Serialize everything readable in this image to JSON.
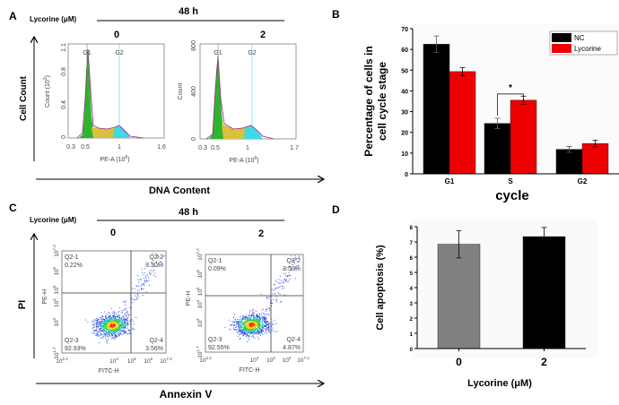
{
  "panel_a": {
    "letter": "A",
    "treatment_label": "Lycorine (μM)",
    "time": "48 h",
    "dose_0": "0",
    "dose_2": "2",
    "y_axis": "Cell  Count",
    "x_axis": "DNA Content",
    "plot_0": {
      "ylabel": "Count (10",
      "ylabel_exp": "3",
      "xlabel": "PE-A (10",
      "xlabel_exp": "6",
      "yticks": [
        "0",
        "0.4",
        "0.8",
        "1.1"
      ],
      "xticks": [
        "0.3",
        "0.5",
        "1",
        "1.6"
      ],
      "g1": "G1",
      "g2": "G2"
    },
    "plot_2": {
      "ylabel": "Count",
      "xlabel": "PE-A (10",
      "xlabel_exp": "6",
      "yticks": [
        "0",
        "400",
        "800"
      ],
      "xticks": [
        "0.3",
        "0.5",
        "1",
        "1.7"
      ],
      "g1": "G1",
      "g2": "G2"
    },
    "colors": {
      "g1": "#2db52d",
      "s": "#d8c23a",
      "g2": "#3fd8e8",
      "outline": "#a0208f"
    }
  },
  "panel_c": {
    "letter": "C",
    "treatment_label": "Lycorine (μM)",
    "time": "48 h",
    "dose_0": "0",
    "dose_2": "2",
    "y_axis": "PI",
    "x_axis": "Annexin V",
    "ylabel": "PE-H",
    "xlabel": "FITC-H",
    "yticks_exp": [
      "1.7",
      "3",
      "4",
      "5",
      "6",
      "7.2"
    ],
    "xticks_exp": [
      "2.2",
      "4",
      "5",
      "6",
      "7.2"
    ],
    "tick_base": "10",
    "plot_0": {
      "q1": "Q2-1",
      "q1v": "0.22%",
      "q2": "Q2-2",
      "q2v": "3.30%",
      "q3": "Q2-3",
      "q3v": "92.93%",
      "q4": "Q2-4",
      "q4v": "3.56%"
    },
    "plot_2": {
      "q1": "Q2-1",
      "q1v": "0.09%",
      "q2": "Q2-2",
      "q2v": "2.50%",
      "q3": "Q2-3",
      "q3v": "92.55%",
      "q4": "Q2-4",
      "q4v": "4.87%"
    }
  },
  "chart_data": [
    {
      "panel": "B",
      "type": "bar",
      "categories": [
        "G1",
        "S",
        "G2"
      ],
      "series": [
        {
          "name": "NC",
          "color": "#000000",
          "values": [
            62.5,
            24.3,
            11.8
          ],
          "errors": [
            4.0,
            2.5,
            1.4
          ]
        },
        {
          "name": "Lycorine",
          "color": "#ee0000",
          "values": [
            49.3,
            35.5,
            14.6
          ],
          "errors": [
            2.0,
            2.0,
            1.6
          ]
        }
      ],
      "ylabel_line1": "Percentage of cells in",
      "ylabel_line2": "cell cycle stage",
      "xlabel": "cycle",
      "ylim": [
        0,
        70
      ],
      "yticks": [
        "0",
        "10",
        "20",
        "30",
        "40",
        "50",
        "60",
        "70"
      ],
      "significance": "*",
      "legend": "top-right"
    },
    {
      "panel": "D",
      "type": "bar",
      "categories": [
        "0",
        "2"
      ],
      "values": [
        6.85,
        7.35
      ],
      "errors": [
        0.9,
        0.6
      ],
      "colors": [
        "#808080",
        "#000000"
      ],
      "ylabel": "Cell apoptosis (%)",
      "xlabel": "Lycorine (μM)",
      "ylim": [
        0,
        8
      ],
      "yticks": [
        "0",
        "1",
        "2",
        "3",
        "4",
        "5",
        "6",
        "7",
        "8"
      ]
    }
  ]
}
